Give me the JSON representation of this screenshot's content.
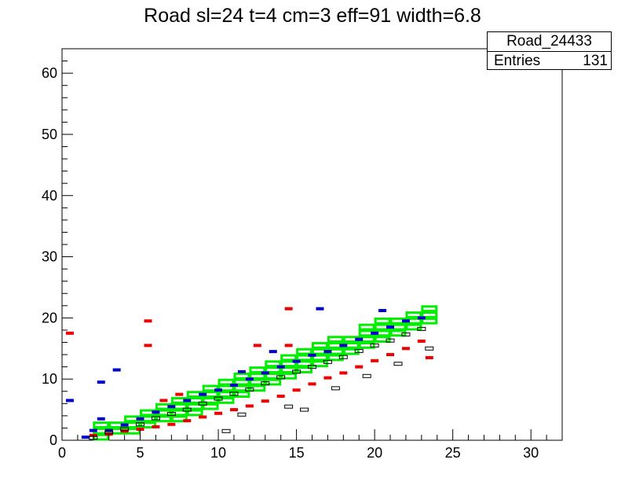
{
  "chart_data": {
    "type": "heatmap",
    "title": "Road sl=24 t=4 cm=3 eff=91 width=6.8",
    "xlabel": "",
    "ylabel": "",
    "xlim": [
      0,
      32
    ],
    "ylim": [
      0,
      64
    ],
    "x_ticks": [
      "0",
      "5",
      "10",
      "15",
      "20",
      "25",
      "30"
    ],
    "y_ticks": [
      "0",
      "10",
      "20",
      "30",
      "40",
      "50",
      "60"
    ],
    "stats_box": {
      "name": "Road_24433",
      "entries_label": "Entries",
      "entries_value": "131"
    },
    "colors": {
      "road": "#00ee00",
      "blue": "#0000cc",
      "red": "#ee0000",
      "black": "#000000"
    },
    "road_bins": [
      [
        2,
        0,
        2
      ],
      [
        3,
        1,
        2
      ],
      [
        4,
        1,
        3
      ],
      [
        5,
        2,
        4
      ],
      [
        6,
        3,
        5
      ],
      [
        7,
        3,
        6
      ],
      [
        8,
        4,
        7
      ],
      [
        9,
        5,
        8
      ],
      [
        10,
        6,
        9
      ],
      [
        11,
        7,
        10
      ],
      [
        12,
        8,
        11
      ],
      [
        13,
        9,
        12
      ],
      [
        14,
        10,
        13
      ],
      [
        15,
        11,
        14
      ],
      [
        16,
        12,
        15
      ],
      [
        17,
        13,
        16
      ],
      [
        18,
        14,
        16
      ],
      [
        19,
        15,
        18
      ],
      [
        20,
        16,
        19
      ],
      [
        21,
        17,
        19
      ],
      [
        22,
        18,
        20
      ],
      [
        23,
        19,
        21
      ]
    ],
    "hits_blue": [
      [
        2,
        1.6
      ],
      [
        3,
        1.6
      ],
      [
        4,
        2.5
      ],
      [
        5,
        3.5
      ],
      [
        6,
        4.6
      ],
      [
        7,
        5.5
      ],
      [
        8,
        6.5
      ],
      [
        9,
        7.5
      ],
      [
        10,
        8.2
      ],
      [
        11,
        9.0
      ],
      [
        12,
        10.0
      ],
      [
        13,
        11.0
      ],
      [
        14,
        12.0
      ],
      [
        15,
        12.9
      ],
      [
        16,
        13.9
      ],
      [
        17,
        14.5
      ],
      [
        18,
        15.5
      ],
      [
        19,
        16.5
      ],
      [
        20,
        17.5
      ],
      [
        21,
        18.5
      ],
      [
        22,
        19.5
      ],
      [
        23,
        20.0
      ],
      [
        1.5,
        0.5
      ],
      [
        2.5,
        9.5
      ],
      [
        3.5,
        11.5
      ],
      [
        11.5,
        11.2
      ],
      [
        13.5,
        14.5
      ],
      [
        16.5,
        21.5
      ],
      [
        0.5,
        6.5
      ],
      [
        20.5,
        21.2
      ],
      [
        2.5,
        3.5
      ]
    ],
    "hits_red": [
      [
        2,
        0.8
      ],
      [
        3,
        1.0
      ],
      [
        4,
        1.5
      ],
      [
        5,
        1.8
      ],
      [
        6,
        2.2
      ],
      [
        7,
        2.6
      ],
      [
        8,
        3.2
      ],
      [
        9,
        3.8
      ],
      [
        10,
        4.4
      ],
      [
        11,
        5.0
      ],
      [
        12,
        5.6
      ],
      [
        13,
        6.4
      ],
      [
        14,
        7.2
      ],
      [
        15,
        8.2
      ],
      [
        16,
        9.2
      ],
      [
        17,
        10.2
      ],
      [
        18,
        11.0
      ],
      [
        19,
        12.0
      ],
      [
        20,
        13.0
      ],
      [
        21,
        14.0
      ],
      [
        22,
        15.0
      ],
      [
        23,
        16.2
      ],
      [
        0.5,
        17.5
      ],
      [
        5.5,
        19.5
      ],
      [
        5.5,
        15.5
      ],
      [
        12.5,
        15.5
      ],
      [
        14.5,
        21.5
      ],
      [
        14.5,
        15.5
      ],
      [
        7.5,
        7.5
      ],
      [
        6.5,
        6.5
      ],
      [
        23.5,
        13.5
      ]
    ],
    "hits_black": [
      [
        2,
        0.4
      ],
      [
        3,
        1.3
      ],
      [
        4,
        1.8
      ],
      [
        5,
        2.6
      ],
      [
        6,
        3.6
      ],
      [
        7,
        4.3
      ],
      [
        8,
        5.0
      ],
      [
        9,
        6.0
      ],
      [
        10,
        6.8
      ],
      [
        11,
        7.6
      ],
      [
        12,
        8.3
      ],
      [
        13,
        9.3
      ],
      [
        14,
        10.3
      ],
      [
        15,
        11.2
      ],
      [
        16,
        12.0
      ],
      [
        17,
        12.8
      ],
      [
        18,
        13.6
      ],
      [
        19,
        14.6
      ],
      [
        20,
        15.5
      ],
      [
        21,
        16.3
      ],
      [
        22,
        17.3
      ],
      [
        23,
        18.2
      ],
      [
        17.5,
        8.5
      ],
      [
        19.5,
        10.5
      ],
      [
        14.5,
        5.5
      ],
      [
        15.5,
        5.0
      ],
      [
        11.5,
        4.2
      ],
      [
        10.5,
        1.5
      ],
      [
        21.5,
        12.5
      ],
      [
        23.5,
        15.0
      ]
    ]
  }
}
